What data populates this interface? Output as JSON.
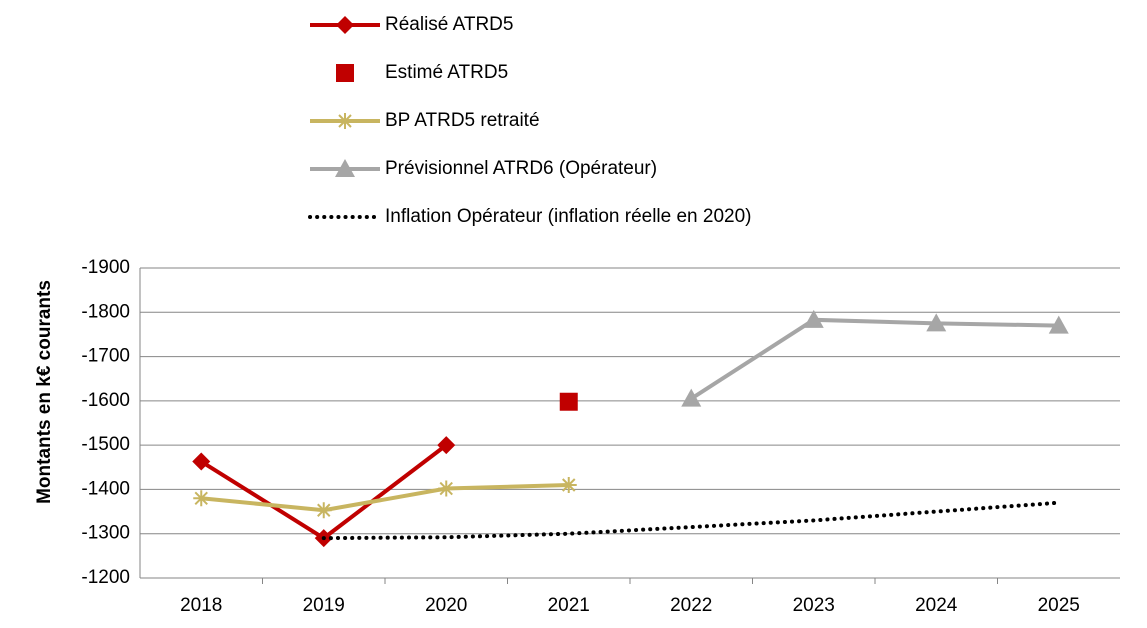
{
  "chart_data": {
    "type": "line",
    "y_label": "Montants en k€ courants",
    "categories": [
      "2018",
      "2019",
      "2020",
      "2021",
      "2022",
      "2023",
      "2024",
      "2025"
    ],
    "ylim": [
      -1200,
      -1900
    ],
    "yticks": [
      -1900,
      -1800,
      -1700,
      -1600,
      -1500,
      -1400,
      -1300,
      -1200
    ],
    "grid": true,
    "legend": "top",
    "series": [
      {
        "name": "Réalisé ATRD5",
        "color": "#c00000",
        "marker": "diamond",
        "line": "solid",
        "values": [
          -1463,
          -1290,
          -1500,
          null,
          null,
          null,
          null,
          null
        ]
      },
      {
        "name": "Estimé ATRD5",
        "color": "#c00000",
        "marker": "square",
        "line": "none",
        "values": [
          null,
          null,
          null,
          -1598,
          null,
          null,
          null,
          null
        ]
      },
      {
        "name": "BP ATRD5 retraité",
        "color": "#c8b560",
        "marker": "star",
        "line": "solid",
        "values": [
          -1380,
          -1353,
          -1402,
          -1410,
          null,
          null,
          null,
          null
        ]
      },
      {
        "name": "Prévisionnel ATRD6 (Opérateur)",
        "color": "#a6a6a6",
        "marker": "triangle",
        "line": "solid",
        "values": [
          null,
          null,
          null,
          null,
          -1605,
          -1783,
          -1775,
          -1770
        ]
      },
      {
        "name": "Inflation Opérateur (inflation réelle en 2020)",
        "color": "#000000",
        "marker": "none",
        "line": "dotted",
        "values": [
          null,
          -1290,
          -1292,
          -1300,
          -1315,
          -1330,
          -1350,
          -1370
        ]
      }
    ]
  }
}
